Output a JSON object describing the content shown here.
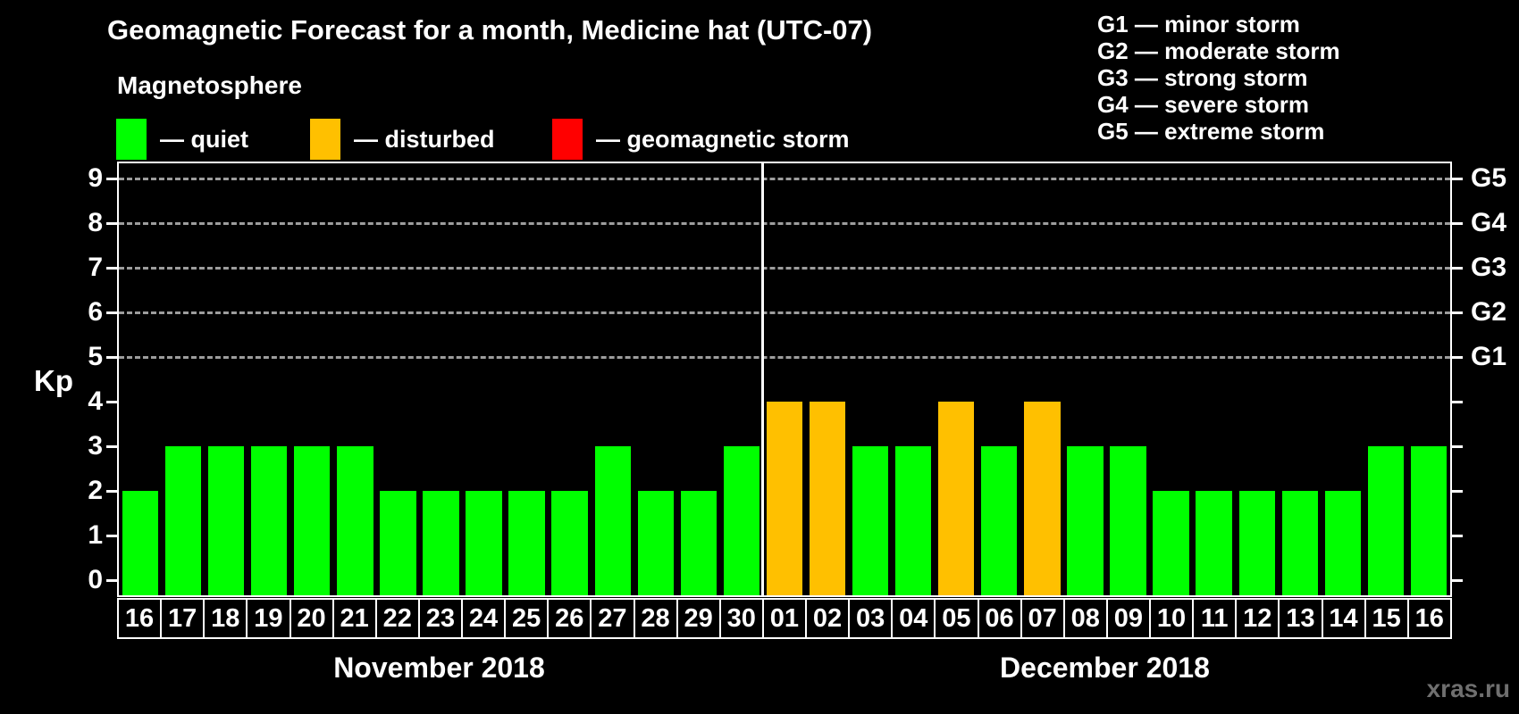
{
  "title": "Geomagnetic Forecast for a month, Medicine hat (UTC-07)",
  "legend": {
    "heading": "Magnetosphere",
    "items": [
      {
        "status": "quiet",
        "label": "— quiet",
        "color": "#00ff00"
      },
      {
        "status": "disturbed",
        "label": "— disturbed",
        "color": "#ffc000"
      },
      {
        "status": "storm",
        "label": "— geomagnetic storm",
        "color": "#ff0000"
      }
    ]
  },
  "g_legend": [
    "G1 — minor storm",
    "G2 — moderate storm",
    "G3 — strong storm",
    "G4 — severe storm",
    "G5 — extreme storm"
  ],
  "watermark": "xras.ru",
  "chart_data": {
    "type": "bar",
    "title": "Geomagnetic Forecast for a month, Medicine hat (UTC-07)",
    "ylabel": "Kp",
    "ylim": [
      0,
      9
    ],
    "grid_levels": [
      5,
      6,
      7,
      8,
      9
    ],
    "legend_position": "top-left",
    "right_axis": [
      {
        "kp": 5,
        "label": "G1"
      },
      {
        "kp": 6,
        "label": "G2"
      },
      {
        "kp": 7,
        "label": "G3"
      },
      {
        "kp": 8,
        "label": "G4"
      },
      {
        "kp": 9,
        "label": "G5"
      }
    ],
    "status_colors": {
      "quiet": "#00ff00",
      "disturbed": "#ffc000",
      "storm": "#ff0000"
    },
    "months": [
      {
        "label": "November 2018",
        "days": [
          {
            "day": "16",
            "kp": 2,
            "status": "quiet"
          },
          {
            "day": "17",
            "kp": 3,
            "status": "quiet"
          },
          {
            "day": "18",
            "kp": 3,
            "status": "quiet"
          },
          {
            "day": "19",
            "kp": 3,
            "status": "quiet"
          },
          {
            "day": "20",
            "kp": 3,
            "status": "quiet"
          },
          {
            "day": "21",
            "kp": 3,
            "status": "quiet"
          },
          {
            "day": "22",
            "kp": 2,
            "status": "quiet"
          },
          {
            "day": "23",
            "kp": 2,
            "status": "quiet"
          },
          {
            "day": "24",
            "kp": 2,
            "status": "quiet"
          },
          {
            "day": "25",
            "kp": 2,
            "status": "quiet"
          },
          {
            "day": "26",
            "kp": 2,
            "status": "quiet"
          },
          {
            "day": "27",
            "kp": 3,
            "status": "quiet"
          },
          {
            "day": "28",
            "kp": 2,
            "status": "quiet"
          },
          {
            "day": "29",
            "kp": 2,
            "status": "quiet"
          },
          {
            "day": "30",
            "kp": 3,
            "status": "quiet"
          }
        ]
      },
      {
        "label": "December 2018",
        "days": [
          {
            "day": "01",
            "kp": 4,
            "status": "disturbed"
          },
          {
            "day": "02",
            "kp": 4,
            "status": "disturbed"
          },
          {
            "day": "03",
            "kp": 3,
            "status": "quiet"
          },
          {
            "day": "04",
            "kp": 3,
            "status": "quiet"
          },
          {
            "day": "05",
            "kp": 4,
            "status": "disturbed"
          },
          {
            "day": "06",
            "kp": 3,
            "status": "quiet"
          },
          {
            "day": "07",
            "kp": 4,
            "status": "disturbed"
          },
          {
            "day": "08",
            "kp": 3,
            "status": "quiet"
          },
          {
            "day": "09",
            "kp": 3,
            "status": "quiet"
          },
          {
            "day": "10",
            "kp": 2,
            "status": "quiet"
          },
          {
            "day": "11",
            "kp": 2,
            "status": "quiet"
          },
          {
            "day": "12",
            "kp": 2,
            "status": "quiet"
          },
          {
            "day": "13",
            "kp": 2,
            "status": "quiet"
          },
          {
            "day": "14",
            "kp": 2,
            "status": "quiet"
          },
          {
            "day": "15",
            "kp": 3,
            "status": "quiet"
          },
          {
            "day": "16",
            "kp": 3,
            "status": "quiet"
          }
        ]
      }
    ]
  }
}
